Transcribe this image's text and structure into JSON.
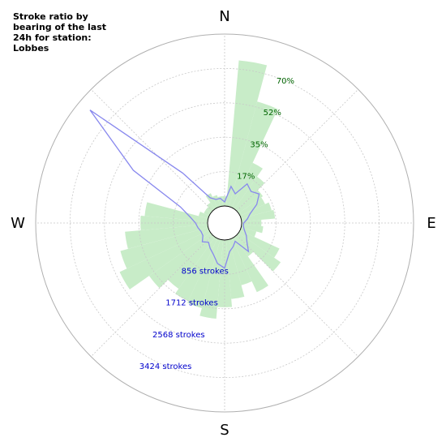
{
  "chart_data": {
    "type": "polar-bar",
    "title": "Stroke ratio by bearing of the last 24h for station: Lobbes",
    "directions": [
      "N",
      "E",
      "S",
      "W"
    ],
    "ratio_ticks": [
      "17%",
      "35%",
      "52%",
      "70%"
    ],
    "ratio_max": 87,
    "strokes_ticks": [
      "856 strokes",
      "1712 strokes",
      "2568 strokes",
      "3424 strokes"
    ],
    "strokes_max": 4280,
    "bin_width_deg": 10,
    "bearings_deg": [
      0,
      10,
      20,
      30,
      40,
      50,
      60,
      70,
      80,
      90,
      100,
      110,
      120,
      130,
      140,
      150,
      160,
      170,
      180,
      190,
      200,
      210,
      220,
      230,
      240,
      250,
      260,
      270,
      280,
      290,
      300,
      310,
      320,
      330,
      340,
      350
    ],
    "series": [
      {
        "name": "ratio",
        "unit": "%",
        "color": "#c8ecc8",
        "values": [
          5,
          74,
          55,
          25,
          20,
          15,
          14,
          16,
          17,
          10,
          11,
          8,
          22,
          26,
          12,
          30,
          24,
          30,
          34,
          40,
          36,
          35,
          32,
          38,
          50,
          46,
          42,
          34,
          32,
          5,
          3,
          3,
          4,
          8,
          6,
          5
        ]
      },
      {
        "name": "strokes",
        "unit": "strokes",
        "color": "#8888ee",
        "values": [
          100,
          500,
          350,
          700,
          600,
          700,
          500,
          250,
          150,
          50,
          50,
          100,
          200,
          300,
          500,
          100,
          200,
          300,
          700,
          600,
          400,
          300,
          200,
          300,
          200,
          200,
          250,
          300,
          450,
          750,
          2200,
          3950,
          1200,
          300,
          200,
          200
        ]
      }
    ]
  }
}
